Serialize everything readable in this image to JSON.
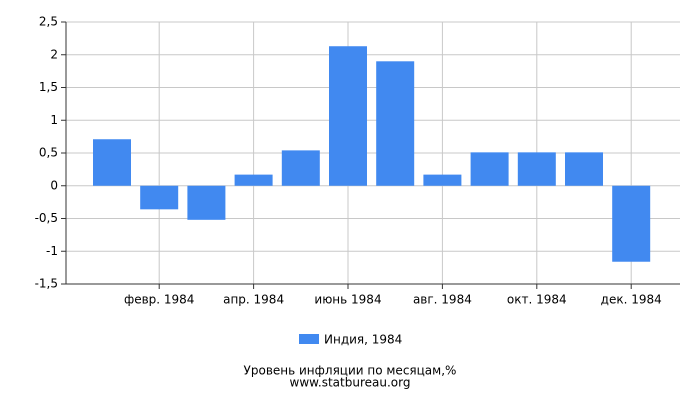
{
  "chart_data": {
    "type": "bar",
    "title": "Уровень инфляции по месяцам,%",
    "source": "www.statbureau.org",
    "categories": [
      null,
      "февр. 1984",
      null,
      "апр. 1984",
      null,
      "июнь 1984",
      null,
      "авг. 1984",
      null,
      "окт. 1984",
      null,
      "дек. 1984"
    ],
    "series": [
      {
        "name": "Индия, 1984",
        "color": "#4189f0",
        "values": [
          0.71,
          -0.36,
          -0.52,
          0.17,
          0.54,
          2.13,
          1.9,
          0.17,
          0.51,
          0.51,
          0.51,
          -1.16
        ]
      }
    ],
    "ylim": [
      -1.5,
      2.5
    ],
    "yticks": [
      {
        "value": -1.5,
        "label": "-1,5"
      },
      -1,
      {
        "value": -0.5,
        "label": "-0,5"
      },
      0,
      {
        "value": 0.5,
        "label": "0,5"
      },
      1,
      {
        "value": 1.5,
        "label": "1,5"
      },
      2,
      {
        "value": 2.5,
        "label": "2,5"
      }
    ],
    "grid": true
  }
}
